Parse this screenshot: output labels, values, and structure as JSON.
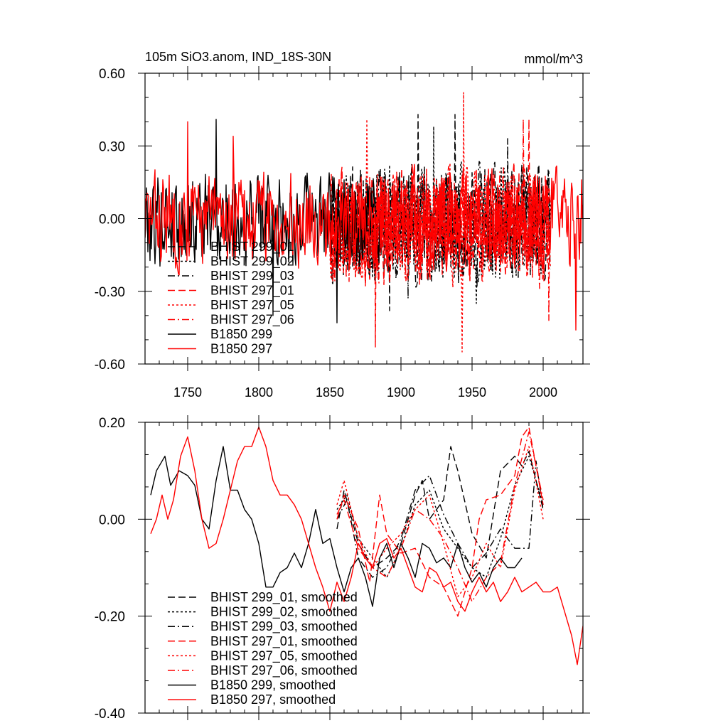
{
  "figure_title": "105m SiO3.anom, IND_18S-30N",
  "units": "mmol/m^3",
  "colors": {
    "black": "#000000",
    "red": "#ff0000"
  },
  "chart_data": [
    {
      "type": "line",
      "title": "105m SiO3.anom, IND_18S-30N",
      "units_label": "mmol/m^3",
      "xlabel": "",
      "ylabel": "",
      "xlim": [
        1720,
        2028
      ],
      "ylim": [
        -0.6,
        0.6
      ],
      "x_ticks": [
        1750,
        1800,
        1850,
        1900,
        1950,
        2000
      ],
      "y_ticks": [
        -0.6,
        -0.3,
        0.0,
        0.3,
        0.6
      ],
      "y_tick_labels": [
        "-0.60",
        "-0.30",
        "0.00",
        "0.30",
        "0.60"
      ],
      "legend_position": "bottom-left",
      "legend": [
        "BHIST 299_01",
        "BHIST 299_02",
        "BHIST 299_03",
        "BHIST 297_01",
        "BHIST 297_05",
        "BHIST 297_06",
        "B1850 299",
        "B1850 297"
      ],
      "series": [
        {
          "name": "BHIST 299_01",
          "color": "#000000",
          "dash": "dashed",
          "x_start": 1850,
          "x_end": 2005,
          "mean": -0.02,
          "amplitude": 0.24,
          "seed": 11,
          "peaks": [
            [
              1912,
              0.43
            ],
            [
              1938,
              0.43
            ],
            [
              1892,
              -0.38
            ]
          ]
        },
        {
          "name": "BHIST 299_02",
          "color": "#000000",
          "dash": "dotted",
          "x_start": 1850,
          "x_end": 2005,
          "mean": -0.02,
          "amplitude": 0.24,
          "seed": 23,
          "peaks": [
            [
              1923,
              0.38
            ],
            [
              1953,
              -0.35
            ]
          ]
        },
        {
          "name": "BHIST 299_03",
          "color": "#000000",
          "dash": "dashdot",
          "x_start": 1850,
          "x_end": 2005,
          "mean": -0.02,
          "amplitude": 0.24,
          "seed": 37,
          "peaks": [
            [
              1975,
              0.33
            ],
            [
              1905,
              -0.33
            ]
          ]
        },
        {
          "name": "BHIST 297_01",
          "color": "#ff0000",
          "dash": "dashed",
          "x_start": 1850,
          "x_end": 2005,
          "mean": -0.03,
          "amplitude": 0.24,
          "seed": 41,
          "peaks": [
            [
              1882,
              -0.53
            ],
            [
              1990,
              0.41
            ]
          ]
        },
        {
          "name": "BHIST 297_05",
          "color": "#ff0000",
          "dash": "dotted",
          "x_start": 1850,
          "x_end": 2005,
          "mean": -0.03,
          "amplitude": 0.24,
          "seed": 53,
          "peaks": [
            [
              1944,
              0.52
            ],
            [
              1943,
              -0.55
            ],
            [
              1876,
              0.41
            ]
          ]
        },
        {
          "name": "BHIST 297_06",
          "color": "#ff0000",
          "dash": "dashdot",
          "x_start": 1850,
          "x_end": 2005,
          "mean": -0.03,
          "amplitude": 0.24,
          "seed": 67,
          "peaks": [
            [
              1986,
              0.41
            ],
            [
              2004,
              -0.42
            ]
          ]
        },
        {
          "name": "B1850 299",
          "color": "#000000",
          "dash": "solid",
          "x_start": 1720,
          "x_end": 1885,
          "mean": 0.0,
          "amplitude": 0.2,
          "seed": 79,
          "peaks": [
            [
              1770,
              0.41
            ],
            [
              1810,
              -0.4
            ],
            [
              1855,
              -0.43
            ]
          ]
        },
        {
          "name": "B1850 297",
          "color": "#ff0000",
          "dash": "solid",
          "x_start": 1720,
          "x_end": 2028,
          "mean": 0.0,
          "amplitude": 0.2,
          "seed": 83,
          "peaks": [
            [
              1750,
              0.4
            ],
            [
              1782,
              0.34
            ],
            [
              2023,
              -0.46
            ],
            [
              2027,
              0.16
            ]
          ]
        }
      ]
    },
    {
      "type": "line",
      "title": "",
      "xlabel": "",
      "ylabel": "",
      "xlim": [
        1720,
        2028
      ],
      "ylim": [
        -0.4,
        0.2
      ],
      "x_ticks": [
        1750,
        1800,
        1850,
        1900,
        1950,
        2000
      ],
      "y_ticks": [
        -0.4,
        -0.2,
        0.0,
        0.2
      ],
      "y_tick_labels": [
        "-0.40",
        "-0.20",
        "0.00",
        "0.20"
      ],
      "legend_position": "bottom-left",
      "legend": [
        "BHIST 299_01, smoothed",
        "BHIST 299_02, smoothed",
        "BHIST 299_03, smoothed",
        "BHIST 297_01, smoothed",
        "BHIST 297_05, smoothed",
        "BHIST 297_06, smoothed",
        "B1850 299, smoothed",
        "B1850 297, smoothed"
      ],
      "series": [
        {
          "name": "BHIST 299_01, smoothed",
          "color": "#000000",
          "dash": "dashed",
          "x": [
            1855,
            1860,
            1870,
            1880,
            1890,
            1900,
            1910,
            1915,
            1920,
            1930,
            1935,
            1940,
            1950,
            1960,
            1970,
            1980,
            1985,
            1990,
            2000
          ],
          "y": [
            -0.02,
            0.06,
            -0.05,
            -0.1,
            -0.08,
            -0.05,
            0.05,
            0.08,
            0.0,
            0.04,
            0.15,
            0.1,
            -0.03,
            -0.08,
            0.1,
            0.13,
            0.11,
            0.14,
            0.02
          ]
        },
        {
          "name": "BHIST 299_02, smoothed",
          "color": "#000000",
          "dash": "dotted",
          "x": [
            1855,
            1862,
            1870,
            1880,
            1890,
            1900,
            1910,
            1920,
            1930,
            1940,
            1950,
            1960,
            1970,
            1980,
            1990,
            2000
          ],
          "y": [
            0.02,
            0.05,
            -0.04,
            -0.08,
            -0.12,
            -0.06,
            0.03,
            0.06,
            -0.02,
            -0.06,
            -0.1,
            -0.12,
            -0.04,
            0.07,
            0.13,
            0.03
          ]
        },
        {
          "name": "BHIST 299_03, smoothed",
          "color": "#000000",
          "dash": "dashdot",
          "x": [
            1855,
            1862,
            1870,
            1880,
            1890,
            1900,
            1910,
            1920,
            1930,
            1940,
            1950,
            1960,
            1970,
            1980,
            1990,
            1995,
            2000
          ],
          "y": [
            0.0,
            0.04,
            -0.08,
            -0.12,
            -0.1,
            -0.04,
            0.06,
            0.09,
            0.01,
            -0.05,
            -0.1,
            -0.07,
            -0.02,
            -0.06,
            -0.06,
            0.12,
            0.02
          ]
        },
        {
          "name": "BHIST 297_01, smoothed",
          "color": "#ff0000",
          "dash": "dashed",
          "x": [
            1855,
            1860,
            1870,
            1878,
            1885,
            1890,
            1900,
            1910,
            1920,
            1930,
            1940,
            1950,
            1955,
            1960,
            1970,
            1980,
            1985,
            1990,
            2000
          ],
          "y": [
            0.0,
            0.05,
            -0.02,
            -0.13,
            0.05,
            -0.03,
            -0.07,
            -0.06,
            -0.12,
            -0.14,
            -0.2,
            -0.1,
            0.0,
            0.04,
            0.05,
            0.09,
            0.17,
            0.19,
            0.03
          ]
        },
        {
          "name": "BHIST 297_05, smoothed",
          "color": "#ff0000",
          "dash": "dotted",
          "x": [
            1855,
            1860,
            1870,
            1880,
            1890,
            1900,
            1910,
            1920,
            1930,
            1940,
            1950,
            1960,
            1970,
            1980,
            1990,
            2000
          ],
          "y": [
            0.03,
            0.08,
            -0.04,
            -0.1,
            -0.06,
            -0.03,
            0.02,
            0.05,
            -0.05,
            -0.16,
            -0.12,
            -0.05,
            -0.1,
            0.06,
            0.15,
            0.0
          ]
        },
        {
          "name": "BHIST 297_06, smoothed",
          "color": "#ff0000",
          "dash": "dashdot",
          "x": [
            1855,
            1860,
            1870,
            1880,
            1890,
            1900,
            1910,
            1920,
            1930,
            1940,
            1950,
            1960,
            1970,
            1980,
            1990,
            2000
          ],
          "y": [
            0.01,
            0.04,
            -0.06,
            -0.1,
            -0.12,
            -0.06,
            0.02,
            0.0,
            -0.04,
            -0.1,
            -0.17,
            -0.12,
            -0.09,
            0.07,
            0.18,
            0.04
          ]
        },
        {
          "name": "B1850 299, smoothed",
          "color": "#000000",
          "dash": "solid",
          "x": [
            1724,
            1728,
            1734,
            1738,
            1744,
            1750,
            1755,
            1760,
            1765,
            1770,
            1775,
            1780,
            1785,
            1790,
            1795,
            1800,
            1805,
            1810,
            1815,
            1820,
            1825,
            1830,
            1835,
            1840,
            1845,
            1850,
            1855,
            1860,
            1865,
            1870,
            1875,
            1880,
            1885,
            1890,
            1895,
            1900,
            1905,
            1910,
            1915,
            1920,
            1925,
            1930,
            1935,
            1940,
            1945,
            1950,
            1955,
            1960,
            1965,
            1970,
            1975,
            1980,
            1985
          ],
          "y": [
            0.05,
            0.1,
            0.13,
            0.07,
            0.1,
            0.09,
            0.07,
            0.0,
            -0.02,
            0.08,
            0.15,
            0.06,
            0.06,
            0.02,
            0.0,
            -0.05,
            -0.14,
            -0.14,
            -0.11,
            -0.1,
            -0.07,
            -0.1,
            -0.05,
            0.02,
            -0.05,
            -0.04,
            -0.1,
            -0.15,
            -0.1,
            -0.08,
            -0.12,
            -0.18,
            -0.08,
            -0.05,
            -0.1,
            -0.05,
            -0.08,
            -0.12,
            -0.05,
            -0.06,
            -0.09,
            -0.08,
            -0.1,
            -0.05,
            -0.1,
            -0.13,
            -0.11,
            -0.14,
            -0.1,
            -0.08,
            -0.1,
            -0.1,
            -0.08
          ]
        },
        {
          "name": "B1850 297, smoothed",
          "color": "#ff0000",
          "dash": "solid",
          "x": [
            1724,
            1728,
            1732,
            1736,
            1740,
            1745,
            1750,
            1755,
            1760,
            1765,
            1770,
            1775,
            1780,
            1785,
            1790,
            1795,
            1800,
            1805,
            1810,
            1815,
            1820,
            1825,
            1830,
            1835,
            1840,
            1845,
            1850,
            1855,
            1860,
            1865,
            1870,
            1875,
            1880,
            1885,
            1890,
            1895,
            1900,
            1905,
            1910,
            1915,
            1920,
            1925,
            1930,
            1935,
            1940,
            1945,
            1950,
            1955,
            1960,
            1965,
            1970,
            1975,
            1980,
            1985,
            1990,
            1995,
            2000,
            2005,
            2010,
            2015,
            2020,
            2024,
            2028
          ],
          "y": [
            -0.03,
            0.0,
            0.05,
            0.0,
            0.04,
            0.13,
            0.17,
            0.1,
            0.0,
            -0.06,
            -0.05,
            0.0,
            0.06,
            0.12,
            0.15,
            0.15,
            0.19,
            0.15,
            0.08,
            0.05,
            0.05,
            0.03,
            0.0,
            -0.05,
            -0.1,
            -0.14,
            -0.19,
            -0.13,
            -0.17,
            -0.12,
            -0.05,
            -0.08,
            -0.1,
            -0.05,
            -0.04,
            -0.08,
            -0.06,
            -0.1,
            -0.14,
            -0.15,
            -0.1,
            -0.11,
            -0.14,
            -0.13,
            -0.17,
            -0.19,
            -0.15,
            -0.12,
            -0.15,
            -0.13,
            -0.17,
            -0.15,
            -0.12,
            -0.15,
            -0.14,
            -0.13,
            -0.15,
            -0.15,
            -0.14,
            -0.19,
            -0.24,
            -0.3,
            -0.22
          ]
        }
      ]
    }
  ]
}
